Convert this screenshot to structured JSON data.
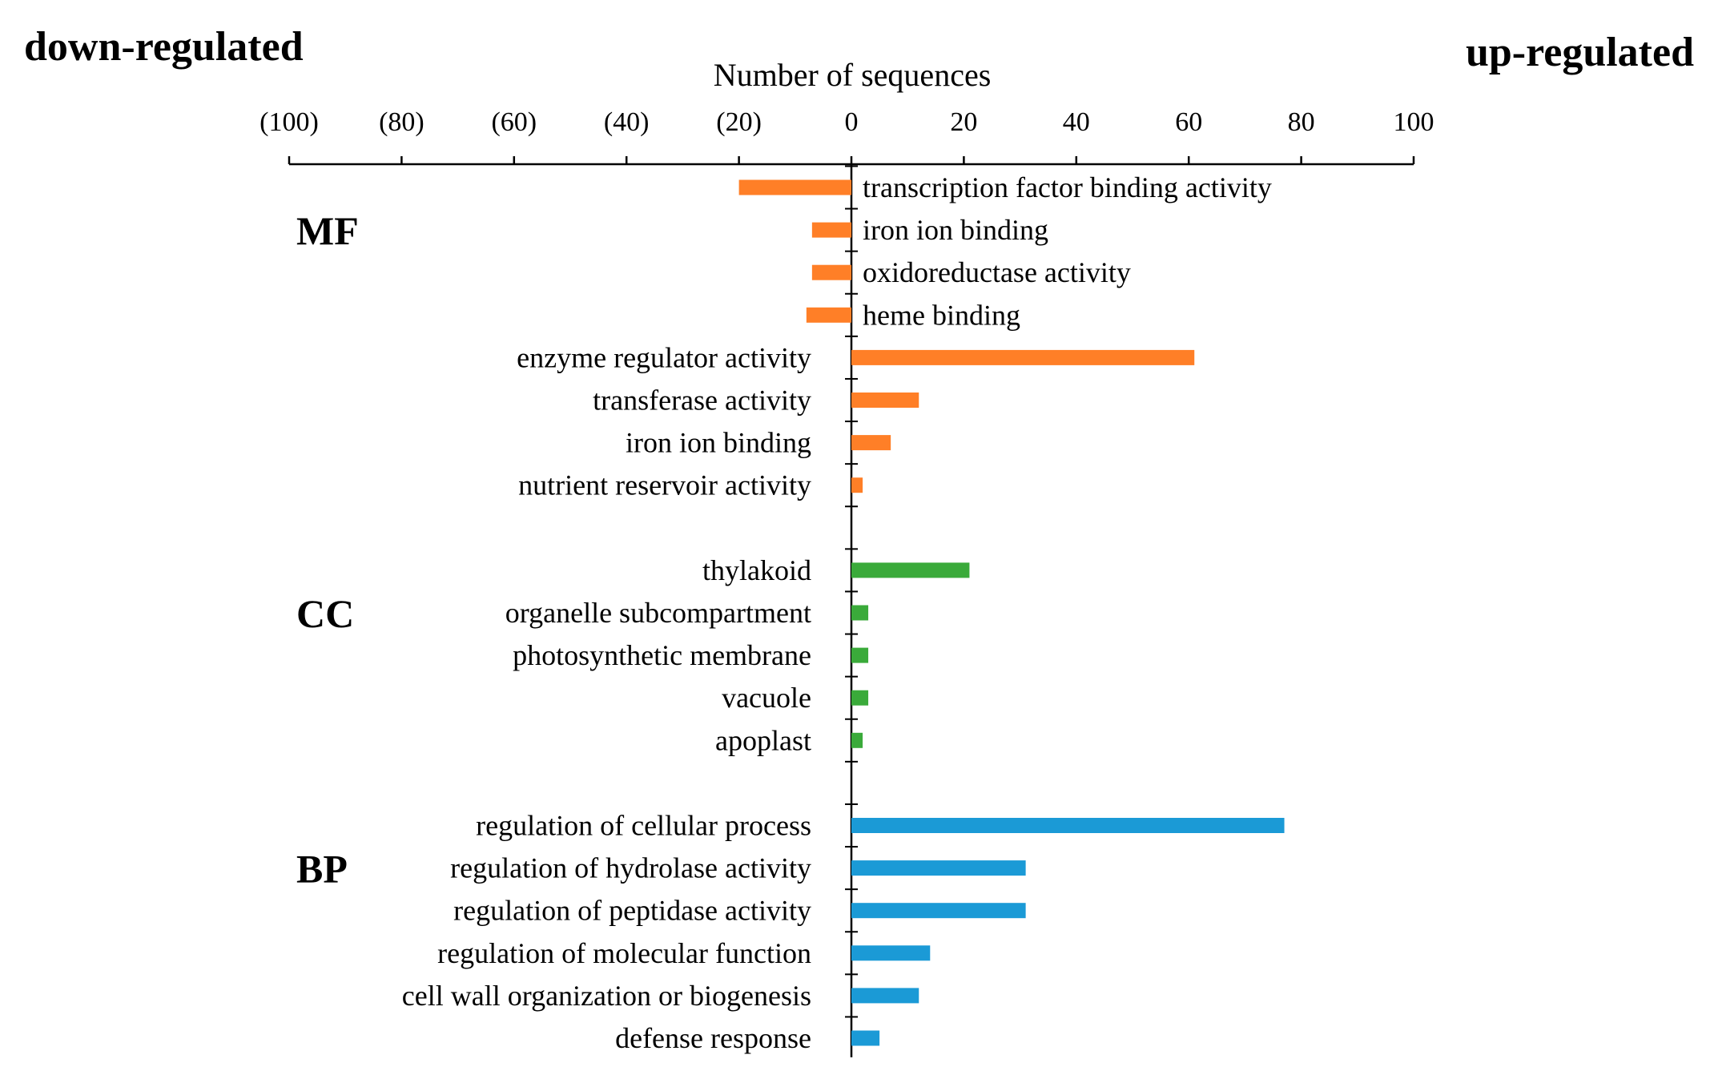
{
  "labels": {
    "left_corner": "down-regulated",
    "right_corner": "up-regulated",
    "axis_title": "Number of sequences"
  },
  "chart_data": {
    "type": "bar",
    "orientation": "horizontal",
    "diverging": true,
    "xlabel": "Number of sequences",
    "xlim": [
      -100,
      100
    ],
    "ticks": [
      {
        "value": -100,
        "label": "(100)"
      },
      {
        "value": -80,
        "label": "(80)"
      },
      {
        "value": -60,
        "label": "(60)"
      },
      {
        "value": -40,
        "label": "(40)"
      },
      {
        "value": -20,
        "label": "(20)"
      },
      {
        "value": 0,
        "label": "0"
      },
      {
        "value": 20,
        "label": "20"
      },
      {
        "value": 40,
        "label": "40"
      },
      {
        "value": 60,
        "label": "60"
      },
      {
        "value": 80,
        "label": "80"
      },
      {
        "value": 100,
        "label": "100"
      }
    ],
    "legend": "none",
    "grid": false,
    "groups": [
      {
        "name": "MF",
        "color": "#ff7f27",
        "items": [
          {
            "label": "transcription factor binding activity",
            "value": -20
          },
          {
            "label": "iron ion binding",
            "value": -7
          },
          {
            "label": "oxidoreductase activity",
            "value": -7
          },
          {
            "label": "heme binding",
            "value": -8
          },
          {
            "label": "enzyme regulator activity",
            "value": 61
          },
          {
            "label": "transferase activity",
            "value": 12
          },
          {
            "label": "iron ion binding",
            "value": 7
          },
          {
            "label": "nutrient reservoir activity",
            "value": 2
          }
        ]
      },
      {
        "name": "CC",
        "color": "#3aaa3a",
        "items": [
          {
            "label": "thylakoid",
            "value": 21
          },
          {
            "label": "organelle subcompartment",
            "value": 3
          },
          {
            "label": "photosynthetic membrane",
            "value": 3
          },
          {
            "label": "vacuole",
            "value": 3
          },
          {
            "label": "apoplast",
            "value": 2
          }
        ]
      },
      {
        "name": "BP",
        "color": "#1b9ad6",
        "items": [
          {
            "label": "regulation of cellular process",
            "value": 77
          },
          {
            "label": "regulation of hydrolase activity",
            "value": 31
          },
          {
            "label": "regulation of peptidase activity",
            "value": 31
          },
          {
            "label": "regulation of molecular function",
            "value": 14
          },
          {
            "label": "cell wall organization or biogenesis",
            "value": 12
          },
          {
            "label": "defense response",
            "value": 5
          }
        ]
      }
    ]
  }
}
